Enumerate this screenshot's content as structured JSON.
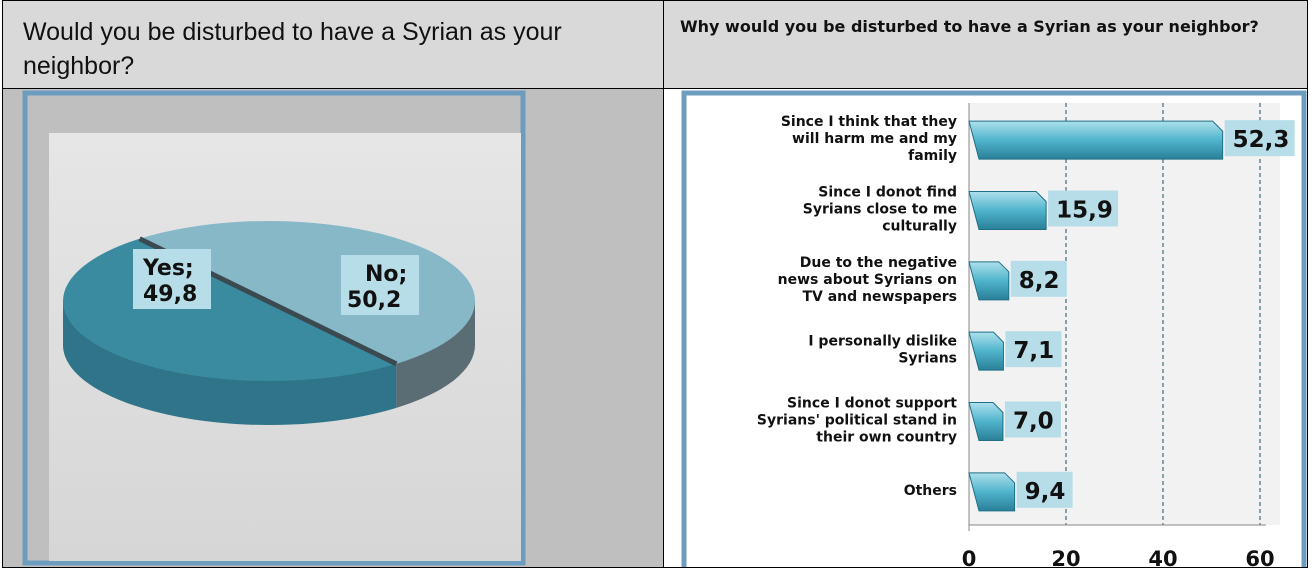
{
  "left_header": "Would you be disturbed to have a Syrian as your neighbor?",
  "right_header": "Why would you be disturbed to have a Syrian as your neighbor?",
  "chart_data": [
    {
      "type": "pie",
      "title": "",
      "slices": [
        {
          "label": "Yes;",
          "value": 49.8,
          "value_text": "49,8",
          "color": "#3a8ba0"
        },
        {
          "label": "No;",
          "value": 50.2,
          "value_text": "50,2",
          "color": "#86b8c8"
        }
      ]
    },
    {
      "type": "bar",
      "orientation": "horizontal",
      "title": "",
      "categories": [
        "Since I think that they will harm me and my family",
        "Since I donot find Syrians close to me culturally",
        "Due to the negative news about Syrians on TV and newspapers",
        "I personally dislike Syrians",
        "Since I donot support Syrians' political stand in their own country",
        "Others"
      ],
      "category_lines": [
        [
          "Since I think that they",
          "will harm me and my",
          "family"
        ],
        [
          "Since I donot find",
          "Syrians close to me",
          "culturally"
        ],
        [
          "Due to the negative",
          "news about Syrians on",
          "TV and newspapers"
        ],
        [
          "I personally dislike",
          "Syrians"
        ],
        [
          "Since I donot support",
          "Syrians' political stand in",
          "their own country"
        ],
        [
          "Others"
        ]
      ],
      "values": [
        52.3,
        15.9,
        8.2,
        7.1,
        7.0,
        9.4
      ],
      "value_labels": [
        "52,3",
        "15,9",
        "8,2",
        "7,1",
        "7,0",
        "9,4"
      ],
      "xlim": [
        0,
        60
      ],
      "x_ticks": [
        "0",
        "20",
        "40",
        "60"
      ],
      "grid": "vertical dashed",
      "bar_color": "#4fb4cc"
    }
  ]
}
